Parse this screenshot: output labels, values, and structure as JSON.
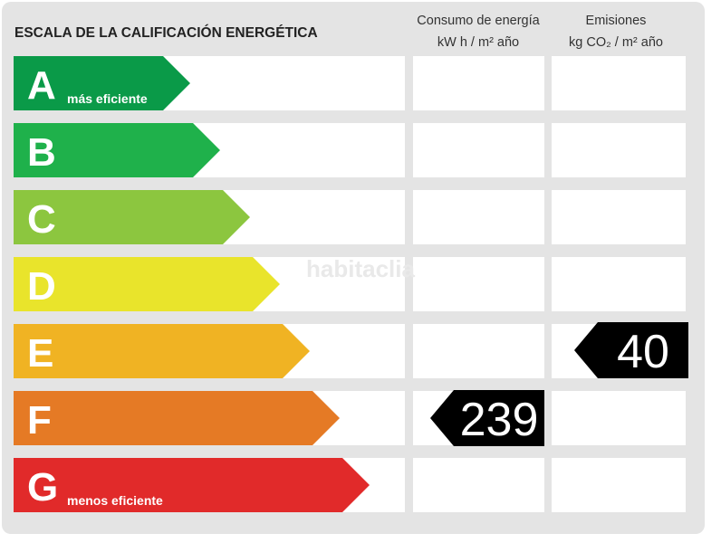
{
  "header": {
    "title": "ESCALA DE LA CALIFICACIÓN ENERGÉTICA",
    "columns": [
      {
        "title": "Consumo de energía",
        "unit": "kW h  / m² año"
      },
      {
        "title": "Emisiones",
        "unit": "kg CO₂  / m² año"
      }
    ]
  },
  "rows": [
    {
      "letter": "A",
      "note": "más eficiente",
      "color": "#0a9a48"
    },
    {
      "letter": "B",
      "color": "#1fb14b"
    },
    {
      "letter": "C",
      "color": "#8cc63f"
    },
    {
      "letter": "D",
      "color": "#e9e42b"
    },
    {
      "letter": "E",
      "color": "#f0b323",
      "emisiones": 40
    },
    {
      "letter": "F",
      "color": "#e57a25",
      "consumo": 239
    },
    {
      "letter": "G",
      "note": "menos eficiente",
      "color": "#e12a2a"
    }
  ],
  "watermark": "habitaclia"
}
